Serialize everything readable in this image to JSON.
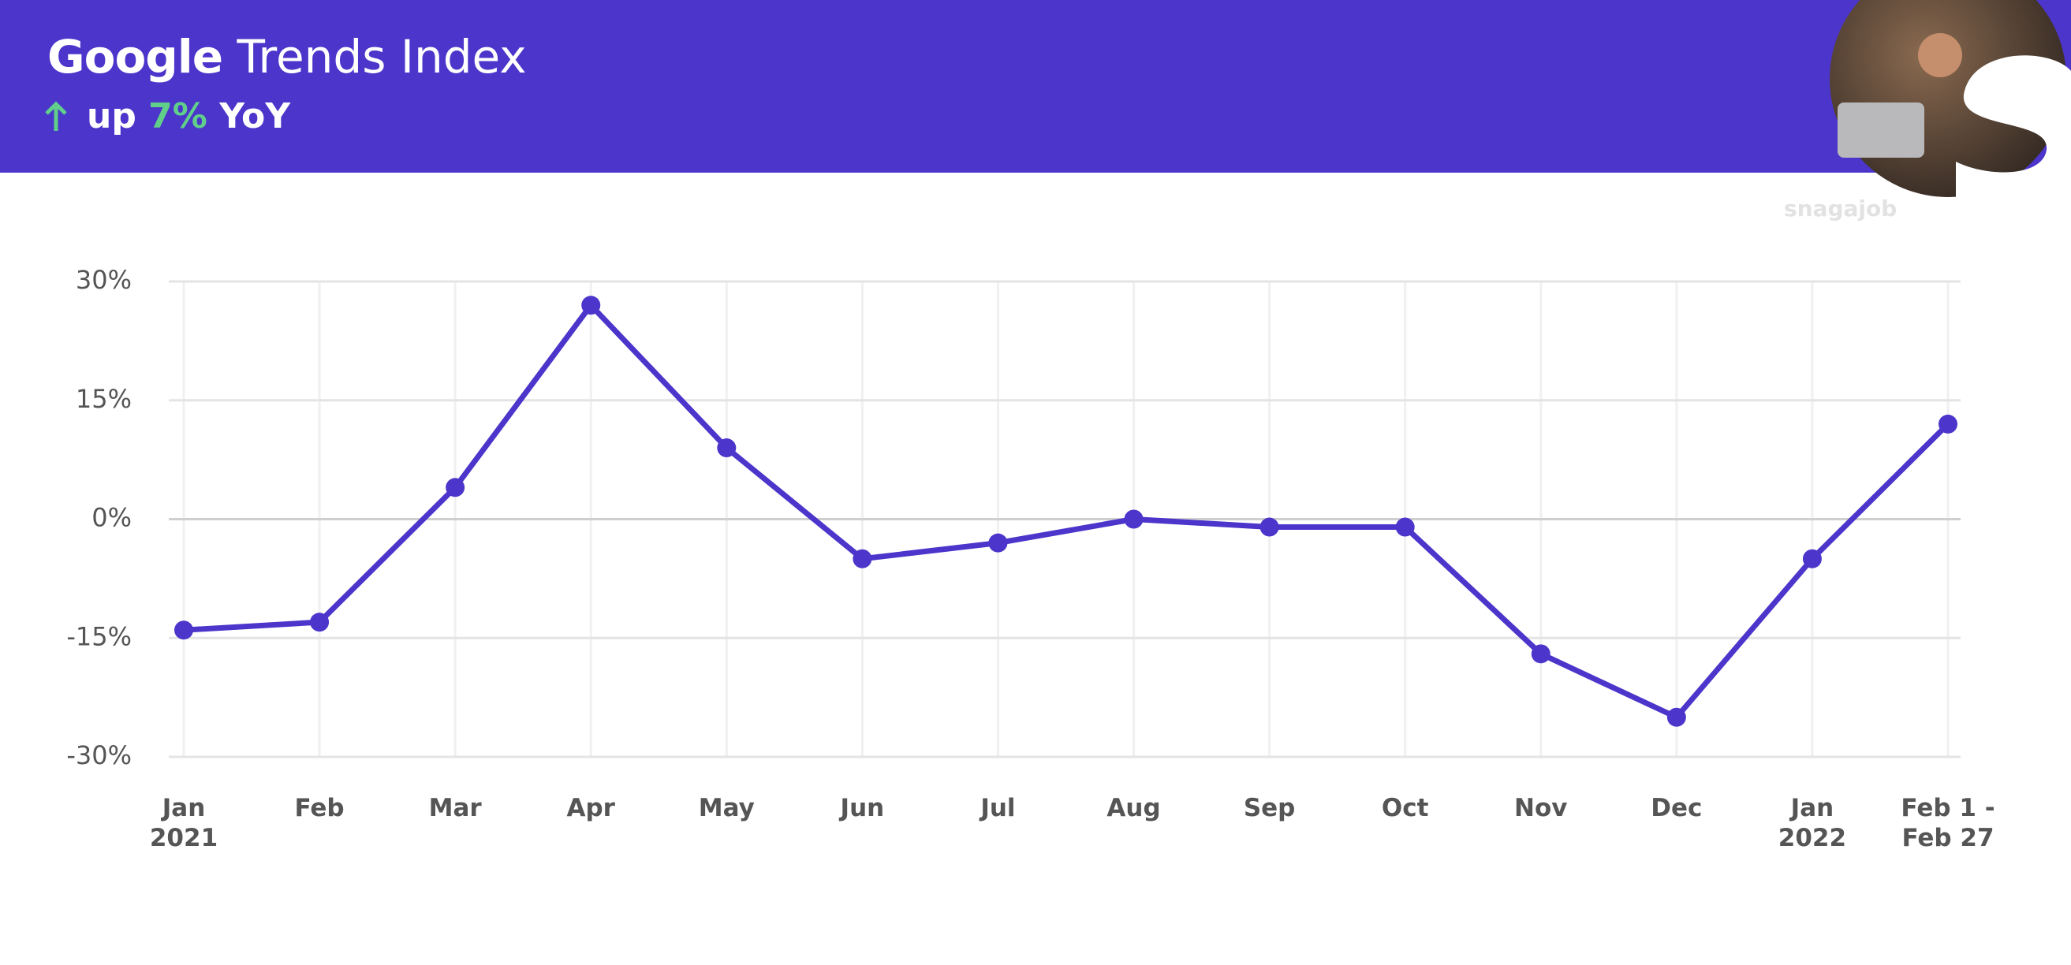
{
  "header": {
    "brand": "Google",
    "title": "Trends Index",
    "change_prefix": "up",
    "change": "7%",
    "change_suffix": "YoY"
  },
  "watermark": "snagajob",
  "chart_data": {
    "type": "line",
    "categories": [
      "Jan\n2021",
      "Feb",
      "Mar",
      "Apr",
      "May",
      "Jun",
      "Jul",
      "Aug",
      "Sep",
      "Oct",
      "Nov",
      "Dec",
      "Jan\n2022",
      "Feb 1 -\nFeb 27"
    ],
    "series": [
      {
        "color": "#4b35cb",
        "values": [
          -14,
          -13,
          4,
          27,
          9,
          -5,
          -3,
          0,
          -1,
          -1,
          -17,
          -25,
          -5,
          12
        ]
      }
    ],
    "ylim": [
      -30,
      30
    ],
    "yticks": [
      {
        "value": -30,
        "label": "-30%"
      },
      {
        "value": -15,
        "label": "-15%"
      },
      {
        "value": 0,
        "label": "0%"
      },
      {
        "value": 15,
        "label": "15%"
      },
      {
        "value": 30,
        "label": "30%"
      }
    ],
    "grid": true
  }
}
